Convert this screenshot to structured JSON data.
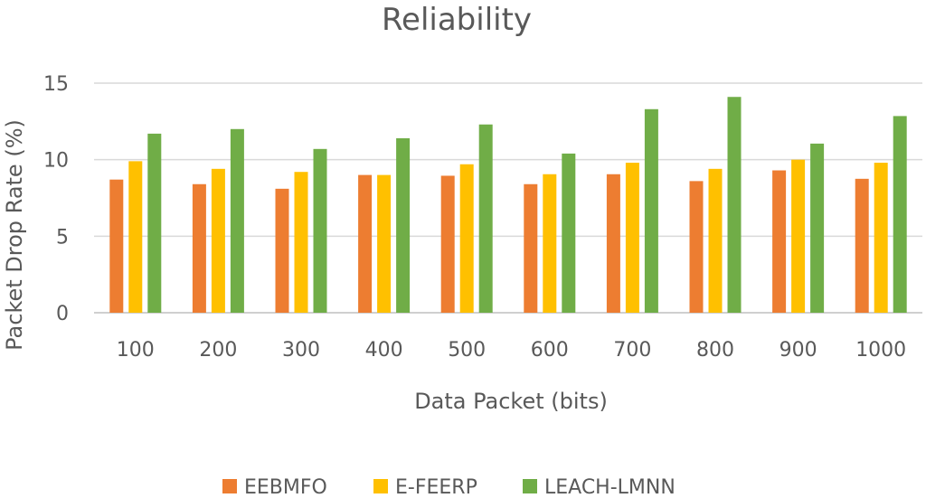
{
  "chart_data": {
    "type": "bar",
    "title": "Reliability",
    "xlabel": "Data Packet (bits)",
    "ylabel": "Packet Drop Rate (%)",
    "categories": [
      "100",
      "200",
      "300",
      "400",
      "500",
      "600",
      "700",
      "800",
      "900",
      "1000"
    ],
    "series": [
      {
        "name": "EEBMFO",
        "color": "#ED7D31",
        "values": [
          8.7,
          8.4,
          8.1,
          9.0,
          8.95,
          8.4,
          9.05,
          8.6,
          9.3,
          8.75
        ]
      },
      {
        "name": "E-FEERP",
        "color": "#FFC000",
        "values": [
          9.9,
          9.4,
          9.2,
          9.0,
          9.7,
          9.05,
          9.8,
          9.4,
          10.0,
          9.8
        ]
      },
      {
        "name": "LEACH-LMNN",
        "color": "#70AD47",
        "values": [
          11.7,
          12.0,
          10.7,
          11.4,
          12.3,
          10.4,
          13.3,
          14.1,
          11.05,
          12.85
        ]
      }
    ],
    "ylim": [
      0,
      15
    ],
    "yticks": [
      0,
      5,
      10,
      15
    ],
    "grid": true,
    "legend_position": "bottom"
  }
}
